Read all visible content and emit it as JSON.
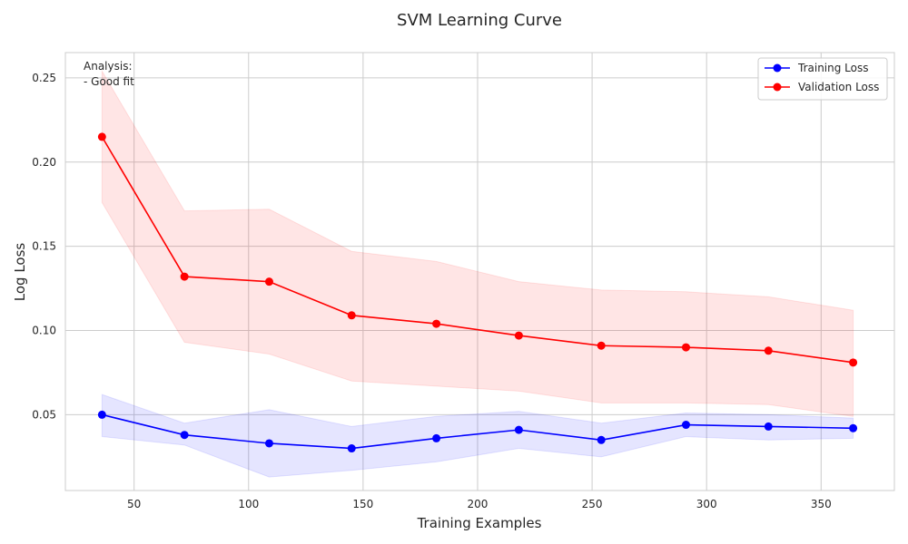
{
  "chart_data": {
    "type": "line",
    "title": "SVM Learning Curve",
    "xlabel": "Training Examples",
    "ylabel": "Log Loss",
    "xlim": [
      20,
      382
    ],
    "ylim": [
      0.005,
      0.265
    ],
    "xticks": [
      50,
      100,
      150,
      200,
      250,
      300,
      350
    ],
    "yticks": [
      0.05,
      0.1,
      0.15,
      0.2,
      0.25
    ],
    "ytick_labels": [
      "0.05",
      "0.10",
      "0.15",
      "0.20",
      "0.25"
    ],
    "grid": true,
    "legend_position": "top-right",
    "x": [
      36,
      72,
      109,
      145,
      182,
      218,
      254,
      291,
      327,
      364
    ],
    "series": [
      {
        "name": "Training Loss",
        "color": "#0000ff",
        "band_color": "#e0e0ff",
        "values": [
          0.05,
          0.038,
          0.033,
          0.03,
          0.036,
          0.041,
          0.035,
          0.044,
          0.043,
          0.042
        ],
        "upper": [
          0.062,
          0.045,
          0.053,
          0.043,
          0.049,
          0.052,
          0.045,
          0.051,
          0.05,
          0.048
        ],
        "lower": [
          0.037,
          0.032,
          0.013,
          0.017,
          0.022,
          0.03,
          0.025,
          0.037,
          0.035,
          0.036
        ]
      },
      {
        "name": "Validation Loss",
        "color": "#ff0000",
        "band_color": "#ffe0e0",
        "values": [
          0.215,
          0.132,
          0.129,
          0.109,
          0.104,
          0.097,
          0.091,
          0.09,
          0.088,
          0.081
        ],
        "upper": [
          0.254,
          0.171,
          0.172,
          0.147,
          0.141,
          0.129,
          0.124,
          0.123,
          0.12,
          0.112
        ],
        "lower": [
          0.176,
          0.093,
          0.086,
          0.07,
          0.067,
          0.064,
          0.057,
          0.057,
          0.056,
          0.049
        ]
      }
    ],
    "annotation": {
      "lines": [
        "Analysis:",
        "- Good fit"
      ],
      "position": "top-left"
    }
  }
}
